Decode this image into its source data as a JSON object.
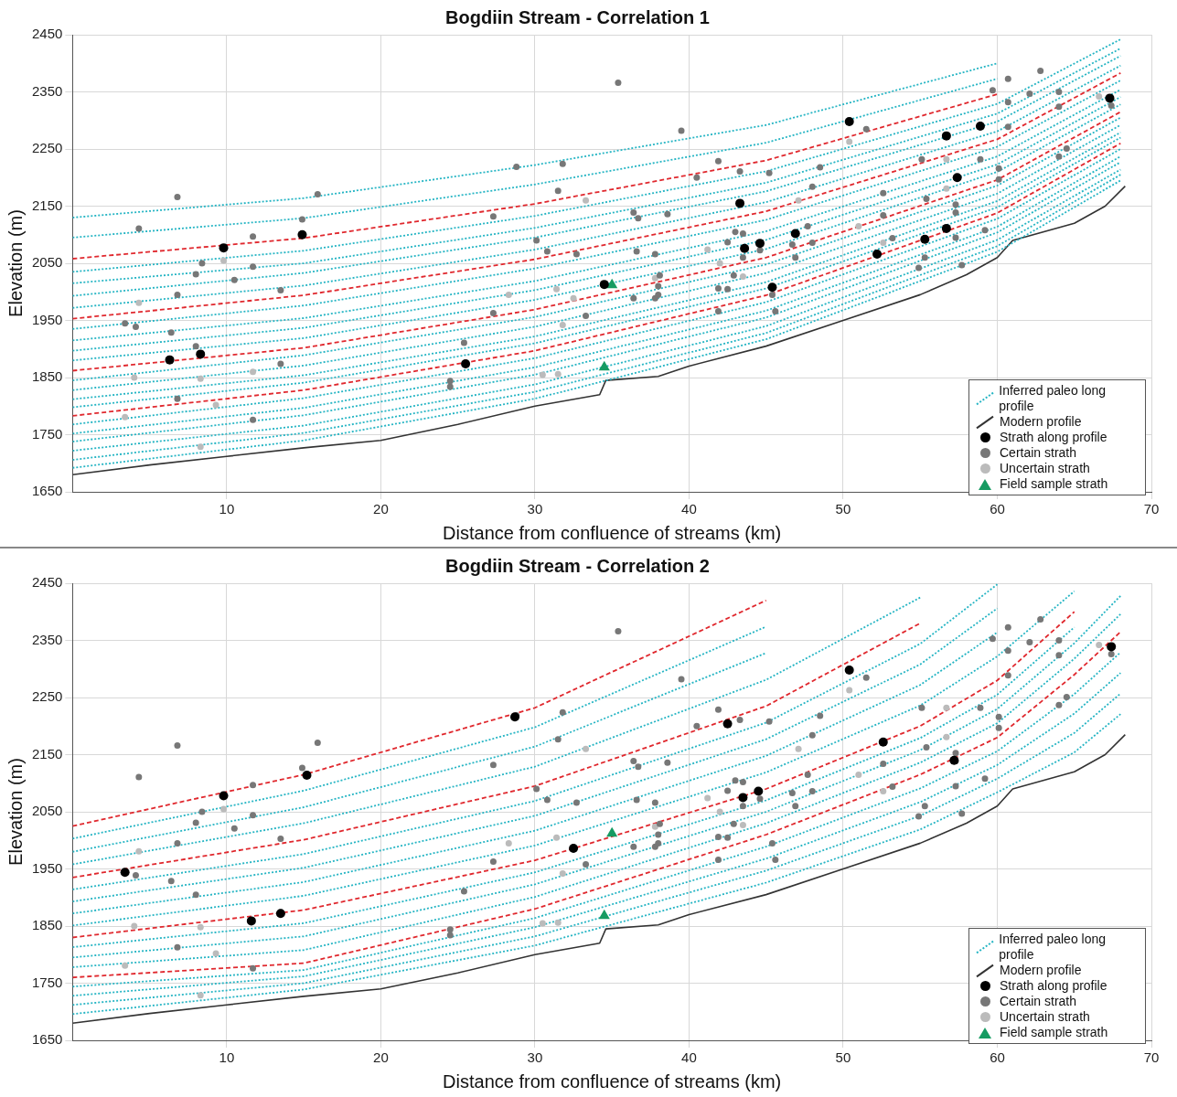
{
  "chart_data": [
    {
      "type": "line",
      "title": "Bogdiin Stream - Correlation 1",
      "xlabel": "Distance from confluence of streams (km)",
      "ylabel": "Elevation (m)",
      "xlim": [
        0,
        70
      ],
      "xticks": [
        10,
        20,
        30,
        40,
        50,
        60,
        70
      ],
      "ylim": [
        1650,
        2450
      ],
      "yticks": [
        1650,
        1750,
        1850,
        1950,
        2050,
        2150,
        2250,
        2350,
        2450
      ],
      "grid": true,
      "legend": "bottom right",
      "x": [
        0,
        15,
        30,
        45,
        60,
        68
      ],
      "series": [
        {
          "type": "line",
          "name": "Inferred paleo long profile",
          "color": "#26b5c4",
          "line_style": "dotted",
          "marker": "none",
          "values": [
            2130,
            2164,
            2222,
            2292,
            2400,
            null
          ]
        },
        {
          "type": "line",
          "color": "#26b5c4",
          "line_style": "dotted",
          "marker": "none",
          "values": [
            2095,
            2129,
            2188,
            2261,
            2373,
            null
          ]
        },
        {
          "type": "line",
          "color": "#e0282e",
          "line_style": "dashed",
          "marker": "none",
          "values": [
            2058,
            2094,
            2154,
            2230,
            2346,
            null
          ]
        },
        {
          "type": "line",
          "color": "#26b5c4",
          "line_style": "dotted",
          "marker": "none",
          "values": [
            2035,
            2072,
            2133,
            2211,
            2329,
            2442
          ]
        },
        {
          "type": "line",
          "color": "#26b5c4",
          "line_style": "dotted",
          "marker": "none",
          "values": [
            2015,
            2050,
            2112,
            2191,
            2312,
            2426
          ]
        },
        {
          "type": "line",
          "color": "#26b5c4",
          "line_style": "dotted",
          "marker": "none",
          "values": [
            1993,
            2033,
            2095,
            2176,
            2298,
            2413
          ]
        },
        {
          "type": "line",
          "color": "#26b5c4",
          "line_style": "dotted",
          "marker": "none",
          "values": [
            1972,
            2011,
            2074,
            2157,
            2281,
            2396
          ]
        },
        {
          "type": "line",
          "color": "#e0282e",
          "line_style": "dashed",
          "marker": "none",
          "values": [
            1953,
            1994,
            2057,
            2141,
            2267,
            2383
          ]
        },
        {
          "type": "line",
          "color": "#26b5c4",
          "line_style": "dotted",
          "marker": "none",
          "values": [
            1935,
            1976,
            2041,
            2126,
            2254,
            2370
          ]
        },
        {
          "type": "line",
          "color": "#26b5c4",
          "line_style": "dotted",
          "marker": "none",
          "values": [
            1915,
            1954,
            2019,
            2106,
            2237,
            2354
          ]
        },
        {
          "type": "line",
          "color": "#26b5c4",
          "line_style": "dotted",
          "marker": "none",
          "values": [
            1897,
            1937,
            2003,
            2091,
            2223,
            2341
          ]
        },
        {
          "type": "line",
          "color": "#26b5c4",
          "line_style": "dotted",
          "marker": "none",
          "values": [
            1880,
            1919,
            1986,
            2075,
            2210,
            2328
          ]
        },
        {
          "type": "line",
          "color": "#e0282e",
          "line_style": "dashed",
          "marker": "none",
          "values": [
            1862,
            1902,
            1969,
            2060,
            2196,
            2315
          ]
        },
        {
          "type": "line",
          "color": "#26b5c4",
          "line_style": "dotted",
          "marker": "none",
          "values": [
            1845,
            1889,
            1956,
            2048,
            2186,
            2305
          ]
        },
        {
          "type": "line",
          "color": "#26b5c4",
          "line_style": "dotted",
          "marker": "none",
          "values": [
            1828,
            1871,
            1939,
            2033,
            2172,
            2292
          ]
        },
        {
          "type": "line",
          "color": "#26b5c4",
          "line_style": "dotted",
          "marker": "none",
          "values": [
            1812,
            1854,
            1922,
            2017,
            2159,
            2279
          ]
        },
        {
          "type": "line",
          "color": "#26b5c4",
          "line_style": "dotted",
          "marker": "none",
          "values": [
            1798,
            1841,
            1910,
            2006,
            2148,
            2270
          ]
        },
        {
          "type": "line",
          "color": "#e0282e",
          "line_style": "dashed",
          "marker": "none",
          "values": [
            1783,
            1828,
            1897,
            1994,
            2138,
            2260
          ]
        },
        {
          "type": "line",
          "color": "#26b5c4",
          "line_style": "dotted",
          "marker": "none",
          "values": [
            1768,
            1814,
            1884,
            1982,
            2128,
            2250
          ]
        },
        {
          "type": "line",
          "color": "#26b5c4",
          "line_style": "dotted",
          "marker": "none",
          "values": [
            1752,
            1797,
            1868,
            1967,
            2114,
            2237
          ]
        },
        {
          "type": "line",
          "color": "#26b5c4",
          "line_style": "dotted",
          "marker": "none",
          "values": [
            1738,
            1784,
            1855,
            1955,
            2104,
            2227
          ]
        },
        {
          "type": "line",
          "color": "#26b5c4",
          "line_style": "dotted",
          "marker": "none",
          "values": [
            1722,
            1766,
            1838,
            1940,
            2091,
            2214
          ]
        },
        {
          "type": "line",
          "color": "#26b5c4",
          "line_style": "dotted",
          "marker": "none",
          "values": [
            1706,
            1753,
            1825,
            1928,
            2080,
            2205
          ]
        },
        {
          "type": "line",
          "color": "#26b5c4",
          "line_style": "dotted",
          "marker": "none",
          "values": [
            1692,
            1740,
            1813,
            1917,
            2070,
            2195
          ]
        },
        {
          "type": "line",
          "name": "Modern profile",
          "color": "#333333",
          "line_style": "solid",
          "marker": "none",
          "x": [
            0,
            5,
            10,
            15,
            20,
            25,
            30,
            34.2,
            34.6,
            38,
            40,
            45,
            50,
            55,
            58,
            60,
            61,
            65,
            67,
            68.3
          ],
          "values": [
            1680,
            1697,
            1712,
            1727,
            1740,
            1768,
            1800,
            1820,
            1845,
            1852,
            1870,
            1905,
            1950,
            1995,
            2030,
            2060,
            2090,
            2120,
            2150,
            2185
          ]
        },
        {
          "type": "scatter",
          "name": "Strath along profile",
          "color": "#000000",
          "marker": "circle",
          "x": [
            6.3,
            8.3,
            9.8,
            14.9,
            25.5,
            34.5,
            43.3,
            43.6,
            44.6,
            45.4,
            46.9,
            50.4,
            52.2,
            55.3,
            56.7,
            56.7,
            57.4,
            58.9,
            67.3
          ],
          "values": [
            1881,
            1891,
            2077,
            2100,
            1874,
            2013,
            2155,
            2076,
            2085,
            2008,
            2102,
            2298,
            2066,
            2092,
            2273,
            2111,
            2200,
            2290,
            2339
          ]
        },
        {
          "type": "scatter",
          "name": "Certain strath",
          "color": "#777777",
          "marker": "circle",
          "x": [
            4.3,
            6.8,
            15.9,
            28.8,
            31.8,
            31.5,
            27.3,
            14.9,
            11.7,
            8.4,
            8.0,
            11.7,
            10.5,
            13.5,
            6.8,
            30.1,
            30.8,
            32.7,
            3.4,
            4.1,
            6.4,
            8.0,
            27.3,
            33.3,
            25.4,
            13.5,
            24.5,
            24.5,
            6.8,
            11.7,
            35.4,
            39.5,
            41.9,
            40.5,
            43.3,
            45.2,
            48.5,
            48.0,
            51.5,
            59.7,
            60.7,
            62.8,
            64.0,
            62.1,
            60.7,
            64.0,
            60.7,
            58.9,
            55.1,
            64.0,
            64.5,
            60.1,
            60.1,
            57.3,
            55.4,
            52.6,
            52.6,
            57.3,
            59.2,
            53.2,
            57.3,
            55.3,
            54.9,
            57.7,
            36.4,
            36.7,
            38.6,
            43.0,
            42.5,
            43.5,
            44.6,
            46.7,
            48.0,
            47.7,
            46.9,
            43.5,
            42.9,
            42.5,
            41.9,
            41.9,
            45.4,
            45.6,
            36.6,
            37.8,
            38.1,
            38.0,
            38.0,
            37.8,
            36.4,
            67.4
          ],
          "values": [
            2111,
            2166,
            2171,
            2219,
            2224,
            2177,
            2132,
            2127,
            2097,
            2050,
            2031,
            2044,
            2021,
            2003,
            1995,
            2090,
            2071,
            2066,
            1945,
            1939,
            1929,
            1905,
            1963,
            1958,
            1911,
            1874,
            1844,
            1834,
            1813,
            1776,
            2366,
            2282,
            2229,
            2200,
            2211,
            2208,
            2218,
            2184,
            2285,
            2353,
            2373,
            2387,
            2350,
            2347,
            2332,
            2324,
            2289,
            2232,
            2232,
            2237,
            2251,
            2216,
            2197,
            2153,
            2163,
            2173,
            2134,
            2139,
            2108,
            2094,
            2095,
            2060,
            2042,
            2047,
            2139,
            2129,
            2136,
            2105,
            2087,
            2102,
            2073,
            2083,
            2086,
            2115,
            2060,
            2060,
            2029,
            2005,
            2006,
            1966,
            1995,
            1966,
            2071,
            2066,
            2029,
            2010,
            1995,
            1989,
            1989,
            2326
          ]
        },
        {
          "type": "scatter",
          "name": "Uncertain strath",
          "color": "#bbbbbb",
          "marker": "circle",
          "x": [
            9.8,
            4.3,
            4.0,
            8.3,
            11.7,
            9.3,
            3.4,
            8.3,
            28.3,
            31.4,
            32.5,
            31.8,
            33.3,
            30.5,
            31.5,
            50.4,
            47.1,
            51.0,
            56.7,
            56.7,
            66.6,
            41.2,
            42.0,
            43.5,
            37.8,
            52.6
          ],
          "values": [
            2055,
            1981,
            1850,
            1848,
            1860,
            1802,
            1781,
            1729,
            1995,
            2005,
            1989,
            1942,
            2160,
            1855,
            1856,
            2263,
            2160,
            2115,
            2232,
            2181,
            2342,
            2074,
            2050,
            2027,
            2024,
            2086
          ]
        },
        {
          "type": "scatter",
          "name": "Field sample strath",
          "color": "#169b62",
          "marker": "triangle",
          "x": [
            34.5,
            35.0
          ],
          "values": [
            1868,
            2012
          ]
        }
      ]
    },
    {
      "type": "line",
      "title": "Bogdiin Stream - Correlation 2",
      "xlabel": "Distance from confluence of streams (km)",
      "ylabel": "Elevation (m)",
      "xlim": [
        0,
        70
      ],
      "xticks": [
        10,
        20,
        30,
        40,
        50,
        60,
        70
      ],
      "ylim": [
        1650,
        2450
      ],
      "yticks": [
        1650,
        1750,
        1850,
        1950,
        2050,
        2150,
        2250,
        2350,
        2450
      ],
      "grid": true,
      "legend": "bottom right",
      "x": [
        0,
        15,
        30,
        45,
        55,
        60,
        65,
        68
      ],
      "series": [
        {
          "type": "line",
          "color": "#e0282e",
          "line_style": "dashed",
          "marker": "none",
          "values": [
            2025,
            2115,
            2232,
            2420,
            null,
            null,
            null,
            null
          ]
        },
        {
          "type": "line",
          "name": "Inferred paleo long profile",
          "color": "#26b5c4",
          "line_style": "dotted",
          "marker": "none",
          "values": [
            2003,
            2087,
            2198,
            2374,
            null,
            null,
            null,
            null
          ]
        },
        {
          "type": "line",
          "color": "#26b5c4",
          "line_style": "dotted",
          "marker": "none",
          "values": [
            1980,
            2058,
            2164,
            2328,
            null,
            null,
            null,
            null
          ]
        },
        {
          "type": "line",
          "color": "#26b5c4",
          "line_style": "dotted",
          "marker": "none",
          "values": [
            1958,
            2030,
            2129,
            2281,
            2425,
            null,
            null,
            null
          ]
        },
        {
          "type": "line",
          "color": "#e0282e",
          "line_style": "dashed",
          "marker": "none",
          "values": [
            1935,
            2001,
            2095,
            2235,
            2380,
            null,
            null,
            null
          ]
        },
        {
          "type": "line",
          "color": "#26b5c4",
          "line_style": "dotted",
          "marker": "none",
          "values": [
            1914,
            1976,
            2069,
            2206,
            2344,
            2448,
            null,
            null
          ]
        },
        {
          "type": "line",
          "color": "#26b5c4",
          "line_style": "dotted",
          "marker": "none",
          "values": [
            1893,
            1952,
            2043,
            2177,
            2308,
            2406,
            null,
            null
          ]
        },
        {
          "type": "line",
          "color": "#26b5c4",
          "line_style": "dotted",
          "marker": "none",
          "values": [
            1872,
            1927,
            2017,
            2148,
            2272,
            2364,
            null,
            null
          ]
        },
        {
          "type": "line",
          "color": "#26b5c4",
          "line_style": "dotted",
          "marker": "none",
          "values": [
            1851,
            1903,
            1991,
            2119,
            2236,
            2322,
            2436,
            null
          ]
        },
        {
          "type": "line",
          "color": "#e0282e",
          "line_style": "dashed",
          "marker": "none",
          "values": [
            1830,
            1878,
            1965,
            2090,
            2200,
            2280,
            2400,
            null
          ]
        },
        {
          "type": "line",
          "color": "#26b5c4",
          "line_style": "dotted",
          "marker": "none",
          "values": [
            1813,
            1855,
            1944,
            2070,
            2179,
            2255,
            2373,
            null
          ]
        },
        {
          "type": "line",
          "color": "#26b5c4",
          "line_style": "dotted",
          "marker": "none",
          "values": [
            1795,
            1832,
            1923,
            2050,
            2158,
            2230,
            2345,
            2428
          ]
        },
        {
          "type": "line",
          "color": "#26b5c4",
          "line_style": "dotted",
          "marker": "none",
          "values": [
            1778,
            1808,
            1901,
            2030,
            2136,
            2205,
            2318,
            2396
          ]
        },
        {
          "type": "line",
          "color": "#e0282e",
          "line_style": "dashed",
          "marker": "none",
          "values": [
            1760,
            1785,
            1880,
            2010,
            2115,
            2180,
            2290,
            2365
          ]
        },
        {
          "type": "line",
          "color": "#26b5c4",
          "line_style": "dotted",
          "marker": "none",
          "values": [
            1744,
            1773,
            1864,
            1989,
            2091,
            2156,
            2256,
            2329
          ]
        },
        {
          "type": "line",
          "color": "#26b5c4",
          "line_style": "dotted",
          "marker": "none",
          "values": [
            1728,
            1762,
            1848,
            1968,
            2067,
            2132,
            2222,
            2293
          ]
        },
        {
          "type": "line",
          "color": "#26b5c4",
          "line_style": "dotted",
          "marker": "none",
          "values": [
            1712,
            1750,
            1832,
            1947,
            2043,
            2108,
            2188,
            2257
          ]
        },
        {
          "type": "line",
          "color": "#26b5c4",
          "line_style": "dotted",
          "marker": "none",
          "values": [
            1696,
            1739,
            1816,
            1926,
            2019,
            2084,
            2154,
            2221
          ]
        },
        {
          "type": "line",
          "name": "Modern profile",
          "color": "#333333",
          "line_style": "solid",
          "marker": "none",
          "x": [
            0,
            5,
            10,
            15,
            20,
            25,
            30,
            34.2,
            34.6,
            38,
            40,
            45,
            50,
            55,
            58,
            60,
            61,
            65,
            67,
            68.3
          ],
          "values": [
            1680,
            1697,
            1712,
            1727,
            1740,
            1768,
            1800,
            1820,
            1845,
            1852,
            1870,
            1905,
            1950,
            1995,
            2030,
            2060,
            2090,
            2120,
            2150,
            2185
          ]
        },
        {
          "type": "scatter",
          "name": "Strath along profile",
          "color": "#000000",
          "marker": "circle",
          "x": [
            3.4,
            9.8,
            15.2,
            28.7,
            32.5,
            11.6,
            13.5,
            42.5,
            43.5,
            44.5,
            50.4,
            52.6,
            57.2,
            67.4
          ],
          "values": [
            1944,
            2078,
            2114,
            2216,
            1986,
            1859,
            1872,
            2204,
            2075,
            2086,
            2298,
            2172,
            2140,
            2339
          ]
        },
        {
          "type": "scatter",
          "name": "Certain strath",
          "color": "#777777",
          "marker": "circle",
          "x": [
            4.3,
            6.8,
            15.9,
            28.8,
            31.8,
            31.5,
            27.3,
            14.9,
            11.7,
            8.4,
            8.0,
            11.7,
            10.5,
            13.5,
            6.8,
            30.1,
            30.8,
            32.7,
            4.1,
            6.4,
            8.0,
            27.3,
            33.3,
            25.4,
            13.5,
            24.5,
            24.5,
            6.8,
            11.7,
            35.4,
            39.5,
            41.9,
            40.5,
            43.3,
            45.2,
            48.5,
            48.0,
            51.5,
            59.7,
            60.7,
            62.8,
            64.0,
            62.1,
            60.7,
            64.0,
            60.7,
            58.9,
            55.1,
            64.0,
            64.5,
            60.1,
            60.1,
            57.3,
            55.4,
            52.6,
            57.3,
            59.2,
            53.2,
            57.3,
            55.3,
            54.9,
            57.7,
            36.4,
            36.7,
            38.6,
            43.0,
            42.5,
            43.5,
            44.6,
            46.7,
            48.0,
            47.7,
            46.9,
            43.5,
            42.9,
            42.5,
            41.9,
            41.9,
            45.4,
            45.6,
            36.6,
            37.8,
            38.1,
            38.0,
            38.0,
            37.8,
            36.4,
            67.4
          ],
          "values": [
            2111,
            2166,
            2171,
            2219,
            2224,
            2177,
            2132,
            2127,
            2097,
            2050,
            2031,
            2044,
            2021,
            2003,
            1995,
            2090,
            2071,
            2066,
            1939,
            1929,
            1905,
            1963,
            1958,
            1911,
            1874,
            1844,
            1834,
            1813,
            1776,
            2366,
            2282,
            2229,
            2200,
            2211,
            2208,
            2218,
            2184,
            2285,
            2353,
            2373,
            2387,
            2350,
            2347,
            2332,
            2324,
            2289,
            2232,
            2232,
            2237,
            2251,
            2216,
            2197,
            2153,
            2163,
            2134,
            2139,
            2108,
            2094,
            2095,
            2060,
            2042,
            2047,
            2139,
            2129,
            2136,
            2105,
            2087,
            2102,
            2073,
            2083,
            2086,
            2115,
            2060,
            2060,
            2029,
            2005,
            2006,
            1966,
            1995,
            1966,
            2071,
            2066,
            2029,
            2010,
            1995,
            1989,
            1989,
            2326
          ]
        },
        {
          "type": "scatter",
          "name": "Uncertain strath",
          "color": "#bbbbbb",
          "marker": "circle",
          "x": [
            9.8,
            4.3,
            4.0,
            8.3,
            9.3,
            3.4,
            8.3,
            28.3,
            31.4,
            31.8,
            33.3,
            30.5,
            31.5,
            50.4,
            47.1,
            51.0,
            56.7,
            56.7,
            66.6,
            41.2,
            42.0,
            43.5,
            37.8,
            52.6
          ],
          "values": [
            2055,
            1981,
            1850,
            1848,
            1802,
            1781,
            1729,
            1995,
            2005,
            1942,
            2160,
            1855,
            1856,
            2263,
            2160,
            2115,
            2232,
            2181,
            2342,
            2074,
            2050,
            2027,
            2024,
            2086
          ]
        },
        {
          "type": "scatter",
          "name": "Field sample strath",
          "color": "#169b62",
          "marker": "triangle",
          "x": [
            34.5,
            35.0
          ],
          "values": [
            1868,
            2012
          ]
        }
      ]
    }
  ]
}
